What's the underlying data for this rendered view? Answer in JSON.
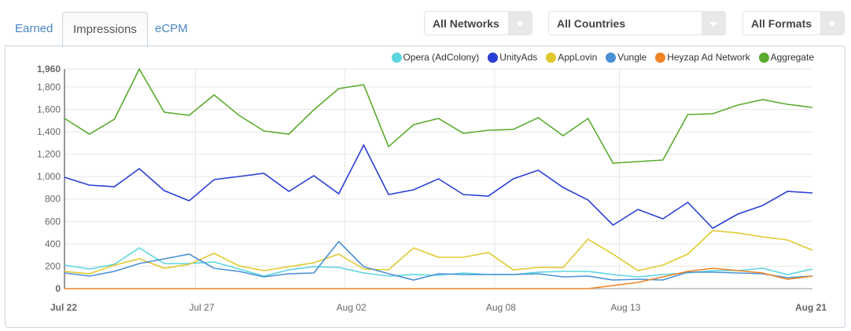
{
  "tabs": [
    {
      "label": "Earned"
    },
    {
      "label": "Impressions"
    },
    {
      "label": "eCPM"
    }
  ],
  "filters": {
    "networks": "All Networks",
    "countries": "All Countries",
    "formats": "All Formats"
  },
  "chart_data": {
    "type": "line",
    "title": "",
    "ylim": [
      0,
      1960
    ],
    "yticks": [
      "0",
      "200",
      "400",
      "600",
      "800",
      "1,000",
      "1,200",
      "1,400",
      "1,600",
      "1,800",
      "1,960"
    ],
    "ytick_values": [
      0,
      200,
      400,
      600,
      800,
      1000,
      1200,
      1400,
      1600,
      1800,
      1960
    ],
    "xticks": [
      {
        "label": "Jul 22",
        "day": 0
      },
      {
        "label": "Jul 27",
        "day": 5
      },
      {
        "label": "Aug 02",
        "day": 11
      },
      {
        "label": "Aug 08",
        "day": 17
      },
      {
        "label": "Aug 13",
        "day": 22
      },
      {
        "label": "Aug 21",
        "day": 30
      }
    ],
    "x_days": 31,
    "legend_position": "top-right",
    "series": [
      {
        "name": "Opera (AdColony)",
        "color": "#5bd5e0",
        "values": [
          210,
          175,
          217,
          364,
          224,
          224,
          238,
          175,
          112,
          168,
          196,
          189,
          140,
          112,
          126,
          119,
          140,
          126,
          126,
          147,
          154,
          154,
          126,
          105,
          126,
          140,
          161,
          161,
          182,
          126,
          175
        ]
      },
      {
        "name": "UnityAds",
        "color": "#2a3fd6",
        "values": [
          994,
          924,
          910,
          1071,
          875,
          784,
          973,
          1001,
          1029,
          868,
          1008,
          847,
          1281,
          840,
          882,
          980,
          840,
          826,
          980,
          1057,
          903,
          791,
          567,
          707,
          623,
          770,
          539,
          665,
          742,
          868,
          854
        ]
      },
      {
        "name": "AppLovin",
        "color": "#e0c92d",
        "values": [
          154,
          133,
          210,
          266,
          182,
          217,
          315,
          203,
          161,
          196,
          231,
          308,
          175,
          168,
          364,
          280,
          280,
          322,
          168,
          189,
          189,
          441,
          308,
          161,
          210,
          308,
          518,
          497,
          462,
          434,
          343
        ]
      },
      {
        "name": "Vungle",
        "color": "#4a90d6",
        "values": [
          140,
          112,
          154,
          224,
          266,
          308,
          182,
          154,
          105,
          133,
          140,
          420,
          196,
          133,
          77,
          133,
          126,
          126,
          126,
          133,
          105,
          112,
          77,
          84,
          77,
          147,
          147,
          140,
          133,
          98,
          112
        ]
      },
      {
        "name": "Heyzap Ad Network",
        "color": "#f28423",
        "values": [
          0,
          0,
          0,
          0,
          0,
          0,
          0,
          0,
          0,
          0,
          0,
          0,
          0,
          0,
          0,
          0,
          0,
          0,
          0,
          0,
          0,
          0,
          28,
          56,
          105,
          154,
          182,
          161,
          140,
          84,
          112
        ]
      },
      {
        "name": "Aggregate",
        "color": "#5aab2e",
        "values": [
          1519,
          1379,
          1512,
          1960,
          1575,
          1547,
          1729,
          1547,
          1407,
          1379,
          1596,
          1785,
          1820,
          1267,
          1463,
          1519,
          1386,
          1414,
          1421,
          1526,
          1365,
          1519,
          1120,
          1134,
          1148,
          1554,
          1561,
          1638,
          1687,
          1645,
          1617
        ]
      }
    ]
  }
}
